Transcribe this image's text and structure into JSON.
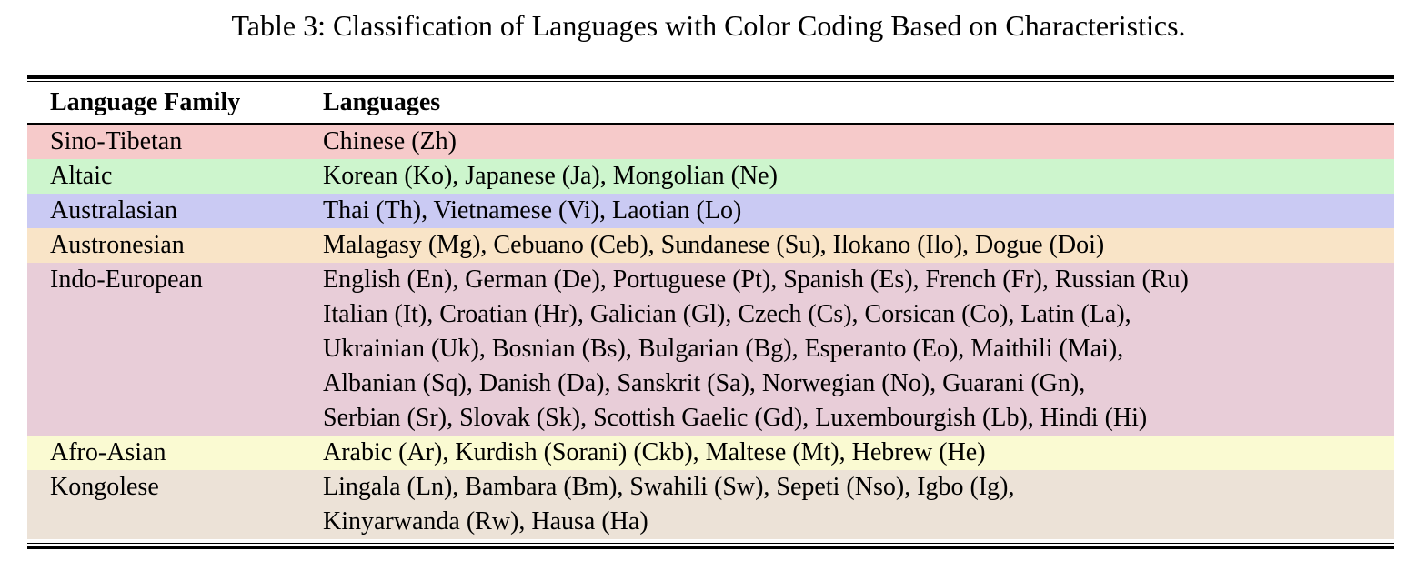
{
  "caption": "Table 3: Classification of Languages with Color Coding Based on Characteristics.",
  "table": {
    "headers": [
      "Language Family",
      "Languages"
    ],
    "rows": [
      {
        "family": "Sino-Tibetan",
        "row_color": "#f6caca",
        "lines": [
          "Chinese (Zh)"
        ]
      },
      {
        "family": "Altaic",
        "row_color": "#cdf5cd",
        "lines": [
          "Korean (Ko), Japanese (Ja), Mongolian (Ne)"
        ]
      },
      {
        "family": "Australasian",
        "row_color": "#cacaf3",
        "lines": [
          "Thai (Th), Vietnamese (Vi), Laotian (Lo)"
        ]
      },
      {
        "family": "Austronesian",
        "row_color": "#f9e4c7",
        "lines": [
          "Malagasy (Mg), Cebuano (Ceb), Sundanese (Su), Ilokano (Ilo), Dogue (Doi)"
        ]
      },
      {
        "family": "Indo-European",
        "row_color": "#e8cdd8",
        "lines": [
          "English (En), German (De), Portuguese (Pt), Spanish (Es), French (Fr), Russian (Ru)",
          "Italian (It), Croatian (Hr), Galician (Gl), Czech (Cs), Corsican (Co), Latin (La),",
          "Ukrainian (Uk), Bosnian (Bs), Bulgarian (Bg), Esperanto (Eo), Maithili (Mai),",
          "Albanian (Sq), Danish (Da), Sanskrit (Sa), Norwegian (No), Guarani (Gn),",
          "Serbian (Sr), Slovak (Sk), Scottish Gaelic (Gd), Luxembourgish (Lb), Hindi (Hi)"
        ]
      },
      {
        "family": "Afro-Asian",
        "row_color": "#fafad2",
        "lines": [
          "Arabic (Ar), Kurdish (Sorani) (Ckb), Maltese (Mt), Hebrew (He)"
        ]
      },
      {
        "family": "Kongolese",
        "row_color": "#ece2d7",
        "lines": [
          "Lingala (Ln), Bambara (Bm), Swahili (Sw), Sepeti (Nso), Igbo (Ig),",
          "Kinyarwanda (Rw), Hausa (Ha)"
        ]
      }
    ]
  }
}
